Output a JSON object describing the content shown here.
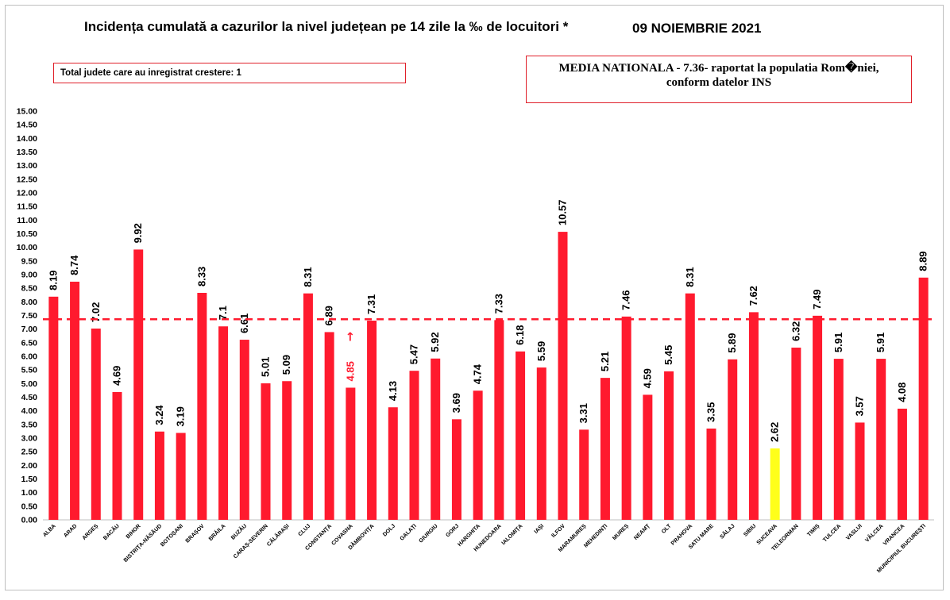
{
  "header": {
    "title": "Incidența cumulată a cazurilor la nivel județean pe 14 zile la ‰ de locuitori *",
    "date": "09 NOIEMBRIE 2021"
  },
  "info": {
    "growth_note": "Total judete care au inregistrat crestere: 1",
    "national_line1": "MEDIA NATIONALA - 7.36-  raportat la populatia Rom�niei,",
    "national_line2": "conform datelor INS"
  },
  "colors": {
    "bar": "#ff1a2e",
    "highlight_bar": "#ffff1a",
    "average_line": "#ff1a2e",
    "arrow": "#ff1a2e"
  },
  "chart_data": {
    "type": "bar",
    "categories": [
      "ALBA",
      "ARAD",
      "ARGEȘ",
      "BACĂU",
      "BIHOR",
      "BISTRIȚA-NĂSĂUD",
      "BOTOȘANI",
      "BRAȘOV",
      "BRĂILA",
      "BUZĂU",
      "CARAȘ-SEVERIN",
      "CĂLĂRAȘI",
      "CLUJ",
      "CONSTANȚA",
      "COVASNA",
      "DÂMBOVIȚA",
      "DOLJ",
      "GALAȚI",
      "GIURGIU",
      "GORJ",
      "HARGHITA",
      "HUNEDOARA",
      "IALOMIȚA",
      "IAȘI",
      "ILFOV",
      "MARAMUREȘ",
      "MEHEDINȚI",
      "MUREȘ",
      "NEAMȚ",
      "OLT",
      "PRAHOVA",
      "SATU MARE",
      "SĂLAJ",
      "SIBIU",
      "SUCEAVA",
      "TELEORMAN",
      "TIMIȘ",
      "TULCEA",
      "VASLUI",
      "VÂLCEA",
      "VRANCEA",
      "MUNICIPIUL BUCUREȘTI"
    ],
    "values": [
      8.19,
      8.74,
      7.02,
      4.69,
      9.92,
      3.24,
      3.19,
      8.33,
      7.1,
      6.61,
      5.01,
      5.09,
      8.31,
      6.89,
      4.85,
      7.31,
      4.13,
      5.47,
      5.92,
      3.69,
      4.74,
      7.33,
      6.18,
      5.59,
      10.57,
      3.31,
      5.21,
      7.46,
      4.59,
      5.45,
      8.31,
      3.35,
      5.89,
      7.62,
      2.62,
      6.32,
      7.49,
      5.91,
      3.57,
      5.91,
      4.08,
      8.89
    ],
    "value_labels": [
      "8.19",
      "8.74",
      "7.02",
      "4.69",
      "9.92",
      "3.24",
      "3.19",
      "8.33",
      "7.1",
      "6.61",
      "5.01",
      "5.09",
      "8.31",
      "6.89",
      "4.85",
      "7.31",
      "4.13",
      "5.47",
      "5.92",
      "3.69",
      "4.74",
      "7.33",
      "6.18",
      "5.59",
      "10.57",
      "3.31",
      "5.21",
      "7.46",
      "4.59",
      "5.45",
      "8.31",
      "3.35",
      "5.89",
      "7.62",
      "2.62",
      "6.32",
      "7.49",
      "5.91",
      "3.57",
      "5.91",
      "4.08",
      "8.89"
    ],
    "ylim": [
      0,
      15
    ],
    "ytick_step": 0.5,
    "average": 7.36,
    "highlight_category": "SUCEAVA",
    "increase_category": "COVASNA",
    "increase_marker": "→",
    "grid": false,
    "legend": "none"
  }
}
